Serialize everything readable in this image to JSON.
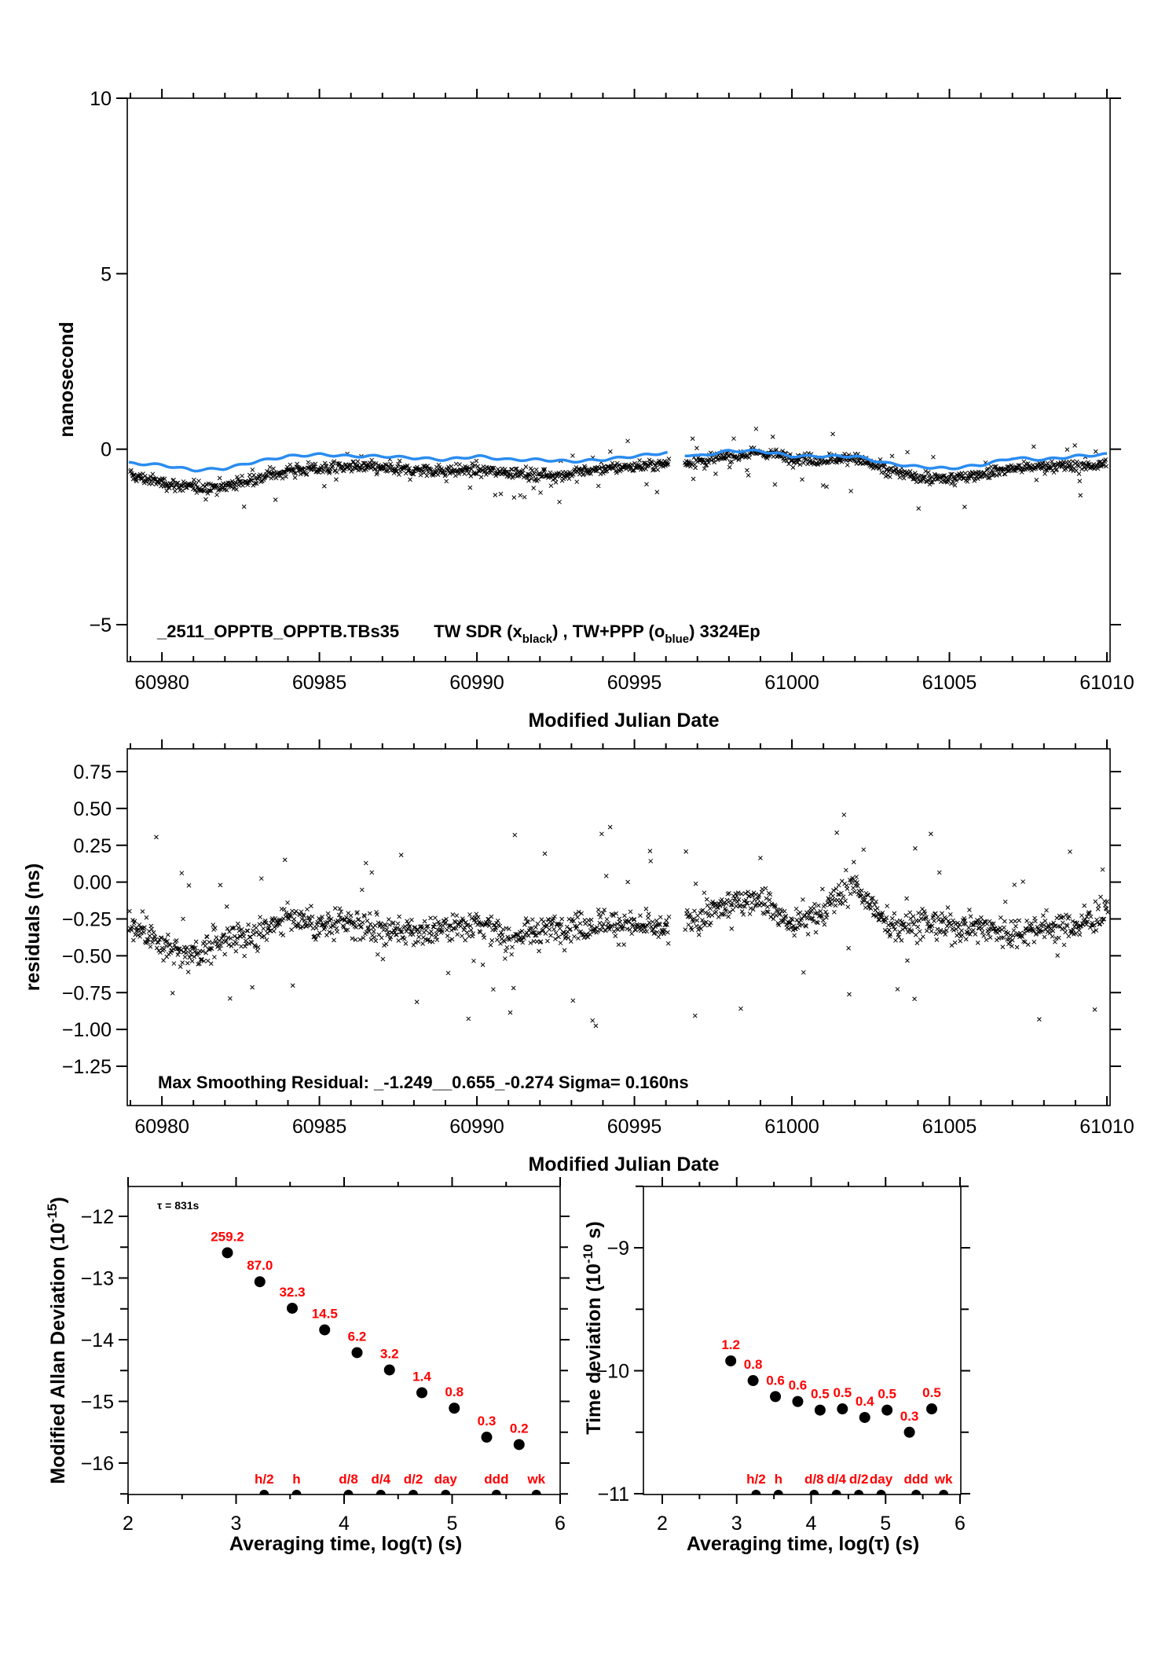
{
  "colors": {
    "points": "#000000",
    "smooth_line": "#2a8cf0",
    "deviation_labels": "#ff0000"
  },
  "chart_data": [
    {
      "id": "time-series",
      "type": "scatter",
      "title": "_2511_OPPTB_OPPTB.TBs35    TW SDR (x_black) ,  TW+PPP (o_blue)  3324Ep",
      "title_parts": {
        "prefix": "_2511_OPPTB_OPPTB.TBs35",
        "tw_sdr": "TW SDR (x",
        "black_sub": "black",
        "sep": ") ,  TW+PPP (o",
        "blue_sub": "blue",
        "suffix": ")  3324Ep"
      },
      "xlabel": "Modified Julian Date",
      "ylabel": "nanosecond",
      "xlim": [
        60978.9,
        61010.1
      ],
      "ylim": [
        -6,
        10
      ],
      "xticks": [
        60980,
        60985,
        60990,
        60995,
        61000,
        61005,
        61010
      ],
      "xtick_labels": [
        "60980",
        "60985",
        "60990",
        "60995",
        "61000",
        "61005",
        "61010"
      ],
      "yticks": [
        10,
        5,
        0,
        -5
      ],
      "ytick_labels": [
        "10",
        "5",
        "0",
        "−5"
      ],
      "gap": [
        60996.1,
        60996.6
      ],
      "series": [
        {
          "name": "TW SDR (x black)",
          "marker": "x",
          "trend_x": [
            60979,
            60980,
            60981,
            60982,
            60983,
            60984,
            60985,
            60986,
            60987,
            60988,
            60989,
            60990,
            60991,
            60992,
            60993,
            60994,
            60995,
            60996,
            60997,
            60998,
            60999,
            61000,
            61001,
            61002,
            61003,
            61004,
            61005,
            61006,
            61007,
            61008,
            61009,
            61010,
            61011
          ],
          "trend_y": [
            -0.75,
            -0.95,
            -1.1,
            -1.05,
            -0.85,
            -0.6,
            -0.55,
            -0.5,
            -0.55,
            -0.6,
            -0.6,
            -0.6,
            -0.65,
            -0.75,
            -0.7,
            -0.55,
            -0.5,
            -0.4,
            -0.35,
            -0.2,
            -0.1,
            -0.25,
            -0.3,
            -0.25,
            -0.6,
            -0.8,
            -0.85,
            -0.7,
            -0.55,
            -0.5,
            -0.5,
            -0.4,
            -0.35
          ]
        },
        {
          "name": "TW+PPP (o blue)",
          "marker": "line",
          "x": [
            60979,
            60980,
            60981,
            60982,
            60983,
            60984,
            60985,
            60986,
            60987,
            60988,
            60989,
            60990,
            60991,
            60992,
            60993,
            60994,
            60995,
            60996,
            60997,
            60998,
            60999,
            61000,
            61001,
            61002,
            61003,
            61004,
            61005,
            61006,
            61007,
            61008,
            61009,
            61010,
            61011
          ],
          "y": [
            -0.4,
            -0.45,
            -0.6,
            -0.55,
            -0.35,
            -0.2,
            -0.15,
            -0.2,
            -0.2,
            -0.25,
            -0.3,
            -0.2,
            -0.3,
            -0.3,
            -0.35,
            -0.3,
            -0.2,
            -0.1,
            -0.2,
            -0.05,
            -0.05,
            -0.2,
            -0.2,
            -0.2,
            -0.4,
            -0.5,
            -0.55,
            -0.45,
            -0.25,
            -0.3,
            -0.2,
            -0.15,
            -0.1
          ]
        }
      ]
    },
    {
      "id": "residuals",
      "type": "scatter",
      "xlabel": "Modified Julian Date",
      "ylabel": "residuals (ns)",
      "xlim": [
        60978.9,
        61010.1
      ],
      "ylim": [
        -1.45,
        0.9
      ],
      "xticks": [
        60980,
        60985,
        60990,
        60995,
        61000,
        61005,
        61010
      ],
      "xtick_labels": [
        "60980",
        "60985",
        "60990",
        "60995",
        "61000",
        "61005",
        "61010"
      ],
      "yticks": [
        0.75,
        0.5,
        0.25,
        0.0,
        -0.25,
        -0.5,
        -0.75,
        -1.0,
        -1.25
      ],
      "ytick_labels": [
        "0.75",
        "0.50",
        "0.25",
        "0.00",
        "−0.25",
        "−0.50",
        "−0.75",
        "−1.00",
        "−1.25"
      ],
      "annotation": "Max Smoothing Residual: _-1.249__0.655_-0.274  Sigma= 0.160ns",
      "stats": {
        "min": -1.249,
        "max": 0.655,
        "mean": -0.274,
        "sigma_ns": 0.16
      },
      "trend_x": [
        60979,
        60980,
        60981,
        60982,
        60983,
        60984,
        60985,
        60986,
        60987,
        60988,
        60989,
        60990,
        60991,
        60992,
        60993,
        60994,
        60995,
        60996,
        60997,
        60998,
        60999,
        61000,
        61001,
        61002,
        61003,
        61004,
        61005,
        61006,
        61007,
        61008,
        61009,
        61010,
        61011
      ],
      "trend_y": [
        -0.3,
        -0.4,
        -0.5,
        -0.38,
        -0.35,
        -0.22,
        -0.3,
        -0.28,
        -0.32,
        -0.35,
        -0.3,
        -0.28,
        -0.38,
        -0.32,
        -0.3,
        -0.28,
        -0.3,
        -0.32,
        -0.25,
        -0.15,
        -0.1,
        -0.3,
        -0.2,
        0.0,
        -0.3,
        -0.28,
        -0.3,
        -0.3,
        -0.35,
        -0.3,
        -0.3,
        -0.2,
        -0.25
      ]
    },
    {
      "id": "mdev",
      "type": "scatter",
      "xlabel": "Averaging time, log(τ) (s)",
      "ylabel": "Modified Allan Deviation (10⁻¹⁵)",
      "ylabel_parts": {
        "main": "Modified Allan Deviation (10",
        "sup": "-15",
        "end": ")"
      },
      "annotation": "τ = 831s",
      "xlim": [
        2,
        6
      ],
      "ylim": [
        -16.5,
        -11.52
      ],
      "xticks": [
        2,
        3,
        4,
        5,
        6
      ],
      "xtick_labels": [
        "2",
        "3",
        "4",
        "5",
        "6"
      ],
      "yticks": [
        -12,
        -13,
        -14,
        -15,
        -16
      ],
      "ytick_labels": [
        "−12",
        "−13",
        "−14",
        "−15",
        "−16"
      ],
      "points_x": [
        2.92,
        3.22,
        3.52,
        3.82,
        4.12,
        4.42,
        4.72,
        5.02,
        5.32,
        5.62
      ],
      "points_y": [
        -12.59,
        -13.06,
        -13.49,
        -13.84,
        -14.21,
        -14.49,
        -14.86,
        -15.11,
        -15.58,
        -15.7
      ],
      "point_labels": [
        "259.2",
        "87.0",
        "32.3",
        "14.5",
        "6.2",
        "3.2",
        "1.4",
        "0.8",
        "0.3",
        "0.2"
      ],
      "reference_x": [
        3.26,
        3.56,
        4.04,
        4.34,
        4.64,
        4.94,
        5.41,
        5.78
      ],
      "reference_labels": [
        "h/2",
        "h",
        "d/8",
        "d/4",
        "d/2",
        "day",
        "ddd",
        "wk"
      ]
    },
    {
      "id": "tdev",
      "type": "scatter",
      "xlabel": "Averaging time, log(τ) (s)",
      "ylabel": "Time deviation (10⁻¹⁰ s)",
      "ylabel_parts": {
        "main": "Time deviation (10",
        "sup": "-10",
        "end": " s)"
      },
      "xlim": [
        1.75,
        6.02
      ],
      "ylim": [
        -11,
        -8.5
      ],
      "xticks": [
        2,
        3,
        4,
        5,
        6
      ],
      "xtick_labels": [
        "2",
        "3",
        "4",
        "5",
        "6"
      ],
      "yticks": [
        -9,
        -10,
        -11
      ],
      "ytick_labels": [
        "−9",
        "−10",
        "−11"
      ],
      "points_x": [
        2.92,
        3.22,
        3.52,
        3.82,
        4.12,
        4.42,
        4.72,
        5.02,
        5.32,
        5.62
      ],
      "points_y": [
        -9.92,
        -10.08,
        -10.21,
        -10.25,
        -10.32,
        -10.31,
        -10.38,
        -10.32,
        -10.5,
        -10.31
      ],
      "point_labels": [
        "1.2",
        "0.8",
        "0.6",
        "0.6",
        "0.5",
        "0.5",
        "0.4",
        "0.5",
        "0.3",
        "0.5"
      ],
      "reference_x": [
        3.26,
        3.56,
        4.04,
        4.34,
        4.64,
        4.94,
        5.41,
        5.78
      ],
      "reference_labels": [
        "h/2",
        "h",
        "d/8",
        "d/4",
        "d/2",
        "day",
        "ddd",
        "wk"
      ]
    }
  ]
}
